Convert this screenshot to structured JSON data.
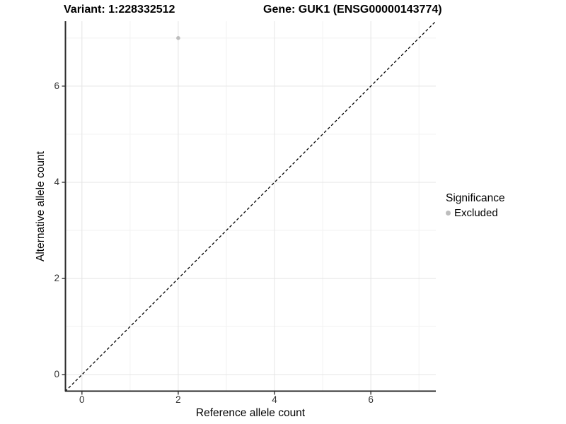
{
  "header": {
    "variant_title": "Variant: 1:228332512",
    "gene_title": "Gene: GUK1 (ENSG00000143774)"
  },
  "chart_data": {
    "type": "scatter",
    "title": "Variant: 1:228332512   Gene: GUK1 (ENSG00000143774)",
    "xlabel": "Reference allele count",
    "ylabel": "Alternative allele count",
    "xlim": [
      -0.35,
      7.35
    ],
    "ylim": [
      -0.35,
      7.35
    ],
    "x_major_ticks": [
      0,
      2,
      4,
      6
    ],
    "y_major_ticks": [
      0,
      2,
      4,
      6
    ],
    "x_minor_gridlines": [
      1,
      3,
      5,
      7
    ],
    "y_minor_gridlines": [
      1,
      3,
      5,
      7
    ],
    "grid": true,
    "series": [
      {
        "name": "Excluded",
        "points": [
          {
            "x": 2,
            "y": 7
          }
        ],
        "color": "#bdbdbd"
      }
    ],
    "reference_line": {
      "type": "identity",
      "equation": "y = x",
      "style": "dashed",
      "color": "#000000"
    },
    "legend": {
      "title": "Significance",
      "position": "right",
      "entries": [
        {
          "label": "Excluded",
          "color": "#bdbdbd"
        }
      ]
    }
  },
  "colors": {
    "background": "#ffffff",
    "grid_major": "#e4e4e4",
    "grid_minor": "#f2f2f2",
    "axis_line": "#2b2b2b",
    "tick_mark": "#333333",
    "point": "#bdbdbd",
    "identity_line": "#000000"
  }
}
